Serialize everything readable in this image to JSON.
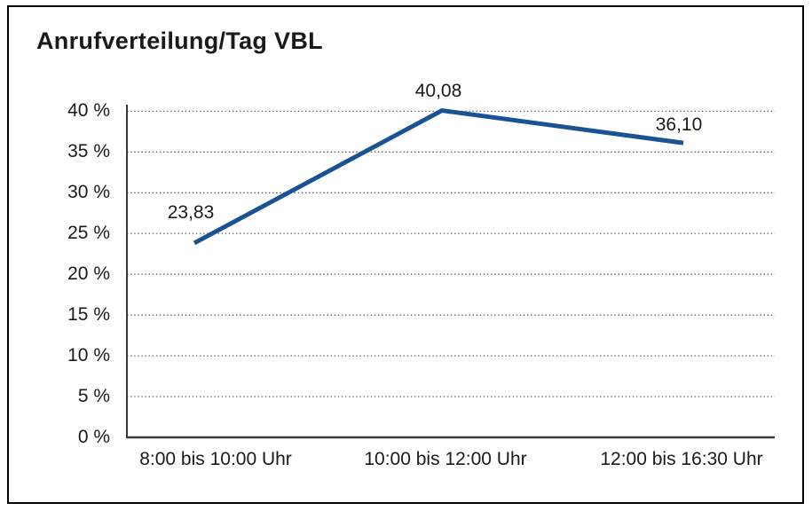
{
  "frame": {
    "background": "#ffffff",
    "border_color": "#000000"
  },
  "chart_data": {
    "type": "line",
    "title": "Anrufverteilung/Tag VBL",
    "categories": [
      "8:00 bis 10:00 Uhr",
      "10:00 bis 12:00 Uhr",
      "12:00 bis 16:30 Uhr"
    ],
    "series": [
      {
        "values": [
          23.83,
          40.08,
          36.1
        ],
        "value_labels": [
          "23,83",
          "40,08",
          "36,10"
        ],
        "color": "#1a5294"
      }
    ],
    "xlabel": "",
    "ylabel": "",
    "ylim": [
      0,
      40
    ],
    "ytick_step": 5,
    "ytick_labels": [
      "0 %",
      "5 %",
      "10 %",
      "15 %",
      "20 %",
      "25 %",
      "30 %",
      "35 %",
      "40 %"
    ],
    "grid": "horizontal-dotted",
    "grid_color": "#555555",
    "axis_color": "#222222",
    "baseline_color": "#3a3a3a",
    "text_color": "#1a1a1a",
    "legend": "none"
  }
}
